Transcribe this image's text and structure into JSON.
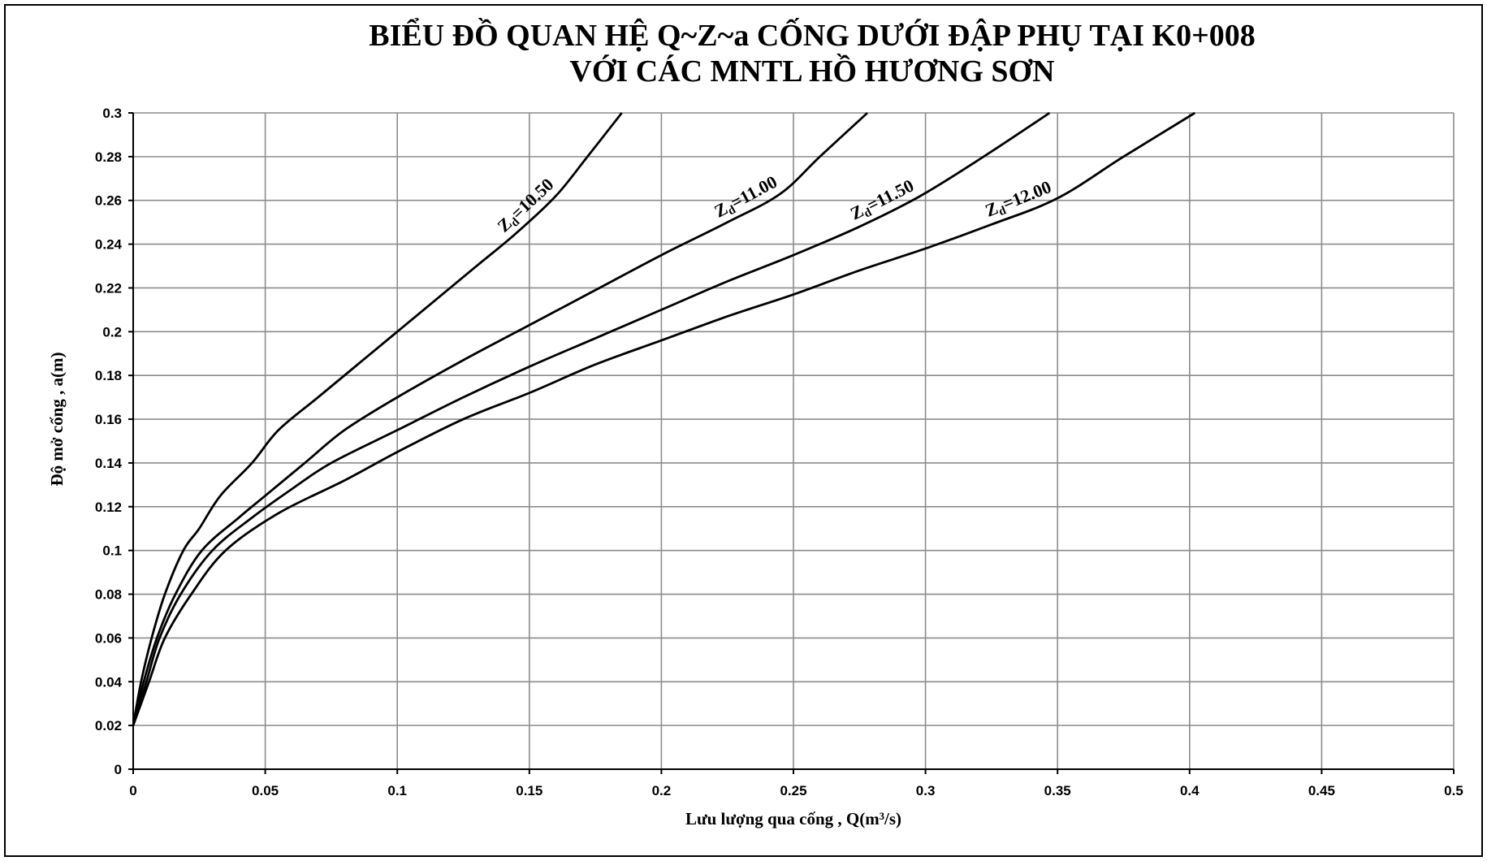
{
  "chart_data": {
    "type": "line",
    "title": "BIỂU ĐỒ QUAN HỆ Q~Z~a CỐNG DƯỚI ĐẬP PHỤ TẠI K0+008",
    "subtitle": "VỚI CÁC MNTL HỒ HƯƠNG SƠN",
    "xlabel": "Lưu lượng qua cống , Q(m³/s)",
    "ylabel": "Độ mở cống , a(m)",
    "xlim": [
      0,
      0.5
    ],
    "ylim": [
      0,
      0.3
    ],
    "x_ticks": [
      "0",
      "0.05",
      "0.1",
      "0.15",
      "0.2",
      "0.25",
      "0.3",
      "0.35",
      "0.4",
      "0.45",
      "0.5"
    ],
    "y_ticks": [
      "0",
      "0.02",
      "0.04",
      "0.06",
      "0.08",
      "0.1",
      "0.12",
      "0.14",
      "0.16",
      "0.18",
      "0.2",
      "0.22",
      "0.24",
      "0.26",
      "0.28",
      "0.3"
    ],
    "grid": true,
    "line_color": "#000000",
    "series": [
      {
        "label_main": "Z",
        "label_sub": "d",
        "label_value": "=10.50",
        "points": [
          [
            0,
            0.02
          ],
          [
            0.003,
            0.04
          ],
          [
            0.007,
            0.06
          ],
          [
            0.012,
            0.08
          ],
          [
            0.019,
            0.1
          ],
          [
            0.025,
            0.11
          ],
          [
            0.033,
            0.125
          ],
          [
            0.045,
            0.14
          ],
          [
            0.055,
            0.155
          ],
          [
            0.07,
            0.17
          ],
          [
            0.085,
            0.185
          ],
          [
            0.1,
            0.2
          ],
          [
            0.115,
            0.215
          ],
          [
            0.13,
            0.23
          ],
          [
            0.145,
            0.245
          ],
          [
            0.16,
            0.262
          ],
          [
            0.172,
            0.28
          ],
          [
            0.185,
            0.3
          ]
        ]
      },
      {
        "label_main": "Z",
        "label_sub": "d",
        "label_value": "=11.00",
        "points": [
          [
            0,
            0.02
          ],
          [
            0.004,
            0.04
          ],
          [
            0.009,
            0.06
          ],
          [
            0.016,
            0.08
          ],
          [
            0.026,
            0.1
          ],
          [
            0.04,
            0.115
          ],
          [
            0.05,
            0.125
          ],
          [
            0.065,
            0.14
          ],
          [
            0.08,
            0.155
          ],
          [
            0.1,
            0.17
          ],
          [
            0.125,
            0.187
          ],
          [
            0.15,
            0.203
          ],
          [
            0.175,
            0.219
          ],
          [
            0.2,
            0.235
          ],
          [
            0.225,
            0.25
          ],
          [
            0.245,
            0.263
          ],
          [
            0.26,
            0.28
          ],
          [
            0.278,
            0.3
          ]
        ]
      },
      {
        "label_main": "Z",
        "label_sub": "d",
        "label_value": "=11.50",
        "points": [
          [
            0,
            0.02
          ],
          [
            0.005,
            0.04
          ],
          [
            0.01,
            0.06
          ],
          [
            0.018,
            0.08
          ],
          [
            0.03,
            0.1
          ],
          [
            0.045,
            0.115
          ],
          [
            0.06,
            0.128
          ],
          [
            0.075,
            0.14
          ],
          [
            0.1,
            0.155
          ],
          [
            0.125,
            0.17
          ],
          [
            0.15,
            0.184
          ],
          [
            0.175,
            0.197
          ],
          [
            0.2,
            0.21
          ],
          [
            0.225,
            0.223
          ],
          [
            0.25,
            0.235
          ],
          [
            0.275,
            0.248
          ],
          [
            0.298,
            0.262
          ],
          [
            0.322,
            0.28
          ],
          [
            0.347,
            0.3
          ]
        ]
      },
      {
        "label_main": "Z",
        "label_sub": "d",
        "label_value": "=12.00",
        "points": [
          [
            0,
            0.02
          ],
          [
            0.006,
            0.04
          ],
          [
            0.012,
            0.06
          ],
          [
            0.022,
            0.08
          ],
          [
            0.035,
            0.1
          ],
          [
            0.055,
            0.117
          ],
          [
            0.08,
            0.132
          ],
          [
            0.1,
            0.145
          ],
          [
            0.125,
            0.16
          ],
          [
            0.15,
            0.172
          ],
          [
            0.175,
            0.185
          ],
          [
            0.2,
            0.196
          ],
          [
            0.225,
            0.207
          ],
          [
            0.25,
            0.217
          ],
          [
            0.275,
            0.228
          ],
          [
            0.3,
            0.238
          ],
          [
            0.325,
            0.249
          ],
          [
            0.35,
            0.261
          ],
          [
            0.375,
            0.28
          ],
          [
            0.402,
            0.3
          ]
        ]
      }
    ]
  }
}
